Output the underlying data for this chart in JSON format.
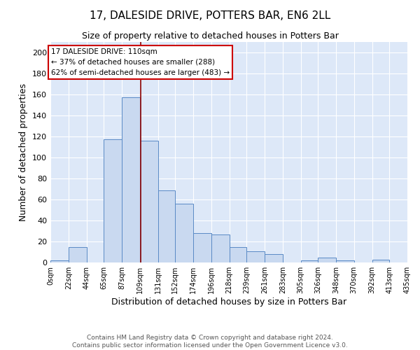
{
  "title": "17, DALESIDE DRIVE, POTTERS BAR, EN6 2LL",
  "subtitle": "Size of property relative to detached houses in Potters Bar",
  "xlabel": "Distribution of detached houses by size in Potters Bar",
  "ylabel": "Number of detached properties",
  "bar_edges": [
    0,
    22,
    44,
    65,
    87,
    109,
    131,
    152,
    174,
    196,
    218,
    239,
    261,
    283,
    305,
    326,
    348,
    370,
    392,
    413,
    435
  ],
  "bar_heights": [
    2,
    15,
    0,
    117,
    157,
    116,
    69,
    56,
    28,
    27,
    15,
    11,
    8,
    0,
    2,
    5,
    2,
    0,
    3,
    0
  ],
  "tick_labels": [
    "0sqm",
    "22sqm",
    "44sqm",
    "65sqm",
    "87sqm",
    "109sqm",
    "131sqm",
    "152sqm",
    "174sqm",
    "196sqm",
    "218sqm",
    "239sqm",
    "261sqm",
    "283sqm",
    "305sqm",
    "326sqm",
    "348sqm",
    "370sqm",
    "392sqm",
    "413sqm",
    "435sqm"
  ],
  "bar_color": "#c9d9f0",
  "bar_edge_color": "#5a8ac6",
  "property_line_x": 110,
  "property_line_color": "#8b0000",
  "ylim": [
    0,
    210
  ],
  "yticks": [
    0,
    20,
    40,
    60,
    80,
    100,
    120,
    140,
    160,
    180,
    200
  ],
  "annotation_title": "17 DALESIDE DRIVE: 110sqm",
  "annotation_line1": "← 37% of detached houses are smaller (288)",
  "annotation_line2": "62% of semi-detached houses are larger (483) →",
  "annotation_box_color": "#ffffff",
  "annotation_box_edge_color": "#cc0000",
  "footer_line1": "Contains HM Land Registry data © Crown copyright and database right 2024.",
  "footer_line2": "Contains public sector information licensed under the Open Government Licence v3.0.",
  "background_color": "#dde8f8",
  "grid_color": "#ffffff",
  "title_fontsize": 11,
  "subtitle_fontsize": 9,
  "ylabel_fontsize": 9,
  "xlabel_fontsize": 9
}
